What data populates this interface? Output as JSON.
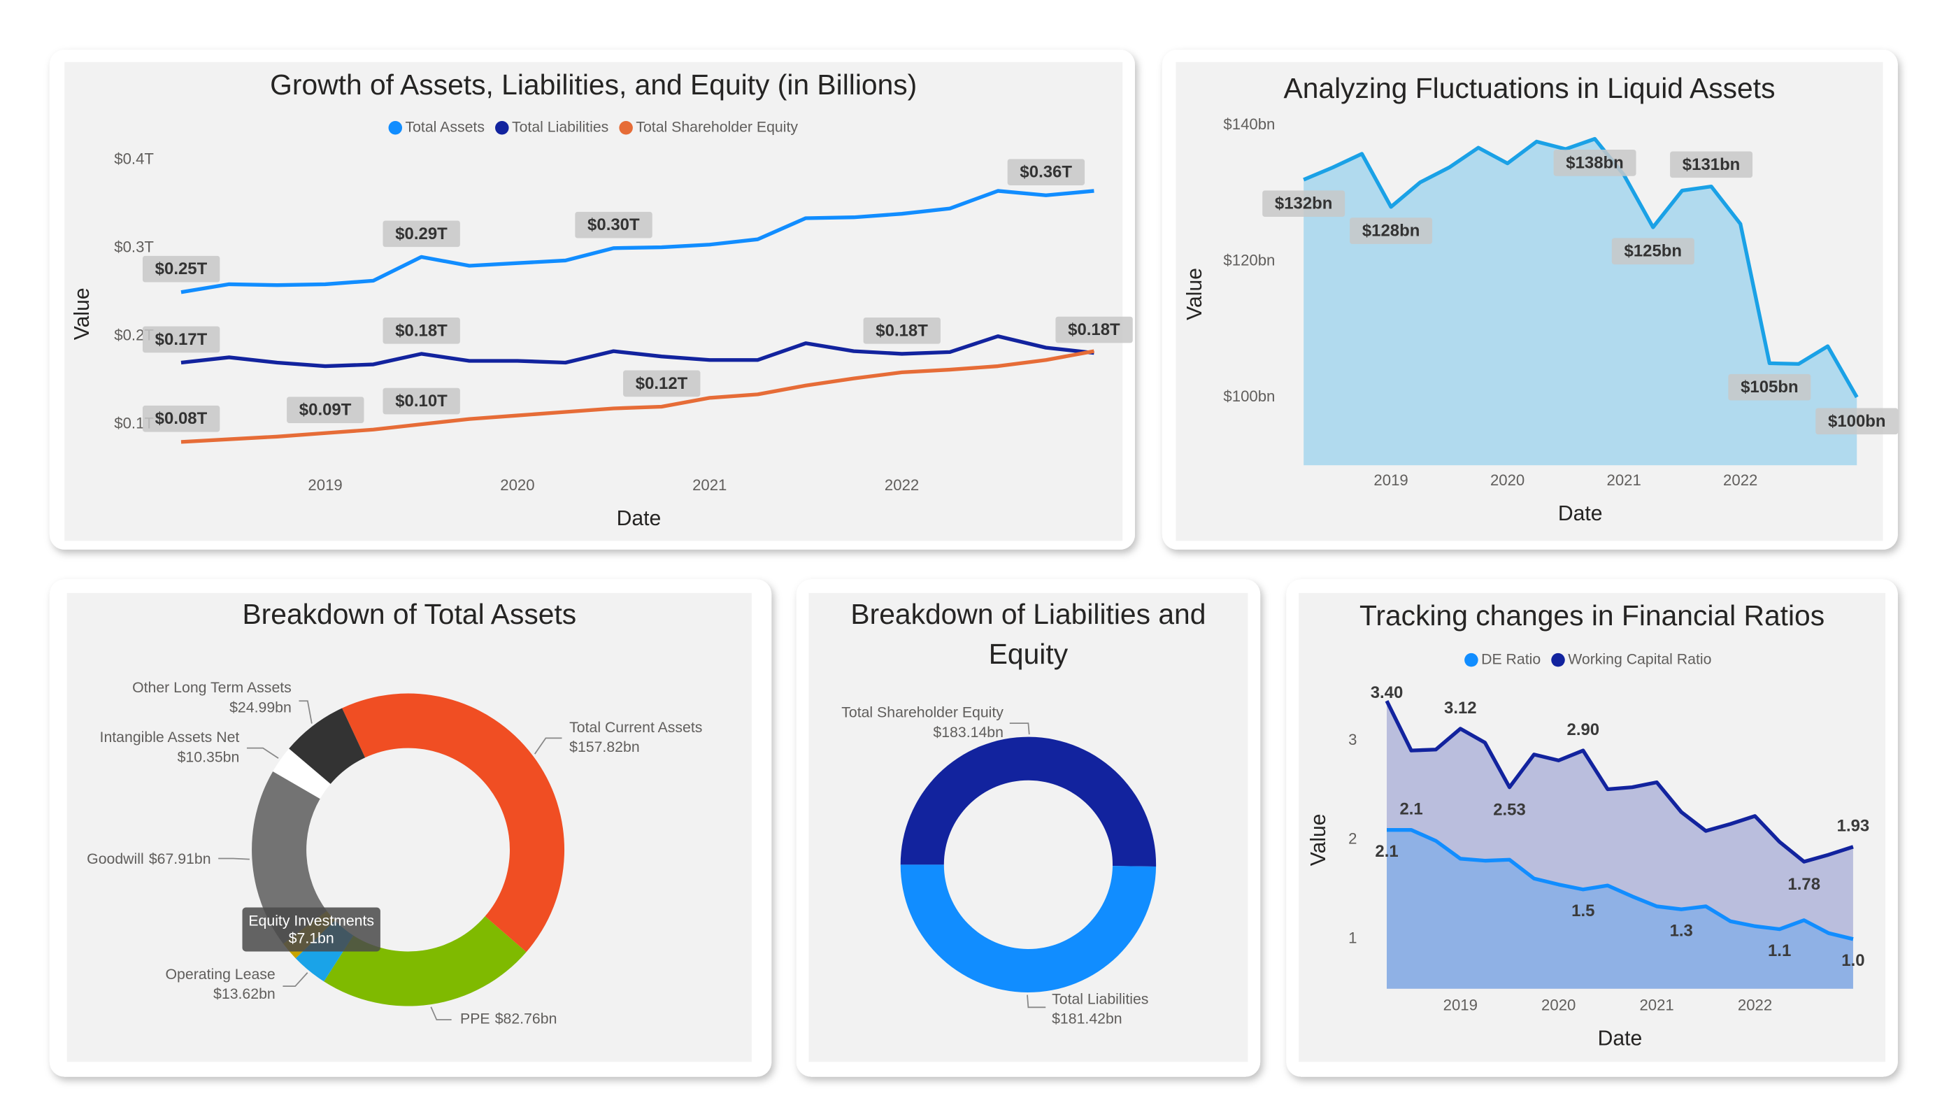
{
  "chart_data": [
    {
      "type": "line",
      "title": "Growth of Assets, Liabilities, and Equity (in Billions)",
      "x_label": "Date",
      "y_label": "Value",
      "legend": "top",
      "grid": false,
      "categories": [
        null,
        null,
        null,
        "2019",
        null,
        null,
        null,
        "2020",
        null,
        null,
        null,
        "2021",
        null,
        null,
        null,
        "2022",
        null,
        null,
        null,
        null
      ],
      "series": [
        {
          "name": "Total Assets",
          "color": "#118DFF",
          "values": [
            0.25,
            0.259,
            0.258,
            0.259,
            0.263,
            0.29,
            0.28,
            0.283,
            0.286,
            0.3,
            0.301,
            0.304,
            0.31,
            0.334,
            0.335,
            0.339,
            0.345,
            0.365,
            0.36,
            0.365
          ],
          "value_labels": [
            "$0.25T",
            null,
            null,
            null,
            null,
            "$0.29T",
            null,
            null,
            null,
            "$0.30T",
            null,
            null,
            null,
            null,
            null,
            null,
            null,
            null,
            "$0.36T",
            null
          ]
        },
        {
          "name": "Total Liabilities",
          "color": "#12239E",
          "values": [
            0.17,
            0.176,
            0.17,
            0.166,
            0.168,
            0.18,
            0.172,
            0.172,
            0.17,
            0.183,
            0.177,
            0.173,
            0.173,
            0.192,
            0.183,
            0.18,
            0.182,
            0.2,
            0.187,
            0.181
          ],
          "value_labels": [
            "$0.17T",
            null,
            null,
            null,
            null,
            "$0.18T",
            null,
            null,
            null,
            null,
            null,
            null,
            null,
            null,
            null,
            "$0.18T",
            null,
            null,
            null,
            "$0.18T"
          ]
        },
        {
          "name": "Total Shareholder Equity",
          "color": "#E66C37",
          "values": [
            0.08,
            0.083,
            0.086,
            0.09,
            0.094,
            0.1,
            0.106,
            0.11,
            0.114,
            0.118,
            0.12,
            0.13,
            0.134,
            0.144,
            0.152,
            0.159,
            0.162,
            0.166,
            0.173,
            0.183
          ],
          "value_labels": [
            "$0.08T",
            null,
            null,
            "$0.09T",
            null,
            "$0.10T",
            null,
            null,
            null,
            null,
            "$0.12T",
            null,
            null,
            null,
            null,
            null,
            null,
            null,
            null,
            null
          ]
        }
      ],
      "ylim": [
        0.06,
        0.42
      ],
      "yticks": [
        {
          "value": 0.1,
          "label": "$0.1T"
        },
        {
          "value": 0.2,
          "label": "$0.2T"
        },
        {
          "value": 0.3,
          "label": "$0.3T"
        },
        {
          "value": 0.4,
          "label": "$0.4T"
        }
      ]
    },
    {
      "type": "area",
      "title": "Analyzing Fluctuations in Liquid Assets",
      "x_label": "Date",
      "y_label": "Value",
      "grid": false,
      "color": "#1AA1E6",
      "categories": [
        null,
        null,
        null,
        "2019",
        null,
        null,
        null,
        "2020",
        null,
        null,
        null,
        "2021",
        null,
        null,
        null,
        "2022",
        null,
        null,
        null,
        null
      ],
      "values": [
        132,
        133.8,
        135.8,
        128,
        131.6,
        133.8,
        136.7,
        134.4,
        137.6,
        136.5,
        138,
        132.7,
        125,
        130.4,
        131,
        125.5,
        105,
        104.9,
        107.5,
        100
      ],
      "value_labels": [
        "$132bn",
        null,
        null,
        "$128bn",
        null,
        null,
        null,
        null,
        null,
        null,
        "$138bn",
        null,
        "$125bn",
        null,
        "$131bn",
        null,
        "$105bn",
        null,
        null,
        "$100bn"
      ],
      "ylim": [
        90,
        142
      ],
      "yticks": [
        {
          "value": 100,
          "label": "$100bn"
        },
        {
          "value": 120,
          "label": "$120bn"
        },
        {
          "value": 140,
          "label": "$140bn"
        }
      ]
    },
    {
      "type": "donut",
      "title": "Breakdown of Total Assets",
      "categories": [
        "Total Current Assets",
        "PPE",
        "Operating Lease",
        "Equity Investments",
        "Goodwill",
        "Intangible Assets Net",
        "Other Long Term Assets"
      ],
      "values": [
        157.82,
        82.76,
        13.62,
        7.1,
        67.91,
        10.35,
        24.99
      ],
      "value_labels": [
        "$157.82bn",
        "$82.76bn",
        "$13.62bn",
        "$7.1bn",
        "$67.91bn",
        "$10.35bn",
        "$24.99bn"
      ],
      "colors": [
        "#F04E23",
        "#7FBA00",
        "#1AA3E8",
        "#C8A400",
        "#737373",
        "#FFFFFF",
        "#333333"
      ]
    },
    {
      "type": "donut",
      "title": "Breakdown of Liabilities and Equity",
      "categories": [
        "Total Shareholder Equity",
        "Total Liabilities"
      ],
      "values": [
        183.14,
        181.42
      ],
      "value_labels": [
        "$183.14bn",
        "$181.42bn"
      ],
      "colors": [
        "#12239E",
        "#118DFF"
      ]
    },
    {
      "type": "area",
      "title": "Tracking changes in Financial Ratios",
      "x_label": "Date",
      "y_label": "Value",
      "legend": "top",
      "grid": false,
      "categories": [
        null,
        null,
        null,
        "2019",
        null,
        null,
        null,
        "2020",
        null,
        null,
        null,
        "2021",
        null,
        null,
        null,
        "2022",
        null,
        null,
        null,
        null
      ],
      "series": [
        {
          "name": "DE Ratio",
          "color": "#118DFF",
          "values": [
            2.1,
            2.1,
            1.99,
            1.81,
            1.79,
            1.8,
            1.61,
            1.55,
            1.5,
            1.54,
            1.43,
            1.33,
            1.3,
            1.33,
            1.18,
            1.13,
            1.1,
            1.19,
            1.06,
            1.0
          ],
          "value_labels": [
            "2.1",
            "2.1",
            null,
            null,
            null,
            null,
            null,
            null,
            "1.5",
            null,
            null,
            null,
            "1.3",
            null,
            null,
            null,
            "1.1",
            null,
            null,
            "1.0"
          ]
        },
        {
          "name": "Working Capital Ratio",
          "color": "#12239E",
          "values": [
            3.4,
            2.9,
            2.91,
            3.12,
            2.98,
            2.53,
            2.86,
            2.8,
            2.9,
            2.51,
            2.53,
            2.58,
            2.28,
            2.09,
            2.16,
            2.24,
            1.98,
            1.78,
            1.85,
            1.93
          ],
          "value_labels": [
            "3.40",
            null,
            null,
            "3.12",
            null,
            "2.53",
            null,
            null,
            "2.90",
            null,
            null,
            null,
            null,
            null,
            null,
            null,
            null,
            "1.78",
            null,
            "1.93"
          ]
        }
      ],
      "ylim": [
        0.5,
        3.6
      ],
      "yticks": [
        1,
        2,
        3
      ]
    }
  ]
}
